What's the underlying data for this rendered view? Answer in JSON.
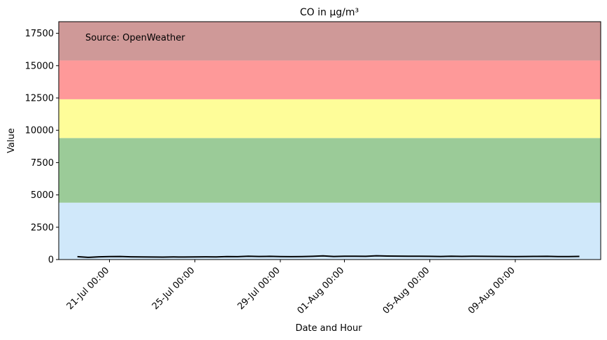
{
  "chart_data": {
    "type": "line",
    "title": "CO in µg/m³",
    "xlabel": "Date and Hour",
    "ylabel": "Value",
    "annotation": "Source: OpenWeather",
    "ylim": [
      0,
      18400
    ],
    "xlim": [
      "2023-07-18T15:00",
      "2023-08-13T00:00"
    ],
    "y_ticks": [
      0,
      2500,
      5000,
      7500,
      10000,
      12500,
      15000,
      17500
    ],
    "y_tick_labels": [
      "0",
      "2500",
      "5000",
      "7500",
      "10000",
      "12500",
      "15000",
      "17500"
    ],
    "x_ticks": [
      {
        "date": "2023-07-21T00:00",
        "label": "21-Jul 00:00"
      },
      {
        "date": "2023-07-25T00:00",
        "label": "25-Jul 00:00"
      },
      {
        "date": "2023-07-29T00:00",
        "label": "29-Jul 00:00"
      },
      {
        "date": "2023-08-01T00:00",
        "label": "01-Aug 00:00"
      },
      {
        "date": "2023-08-05T00:00",
        "label": "05-Aug 00:00"
      },
      {
        "date": "2023-08-09T00:00",
        "label": "09-Aug 00:00"
      }
    ],
    "bands": [
      {
        "from": 0,
        "to": 4400,
        "color": "#d0e8fa"
      },
      {
        "from": 4400,
        "to": 9400,
        "color": "#9bcb98"
      },
      {
        "from": 9400,
        "to": 12400,
        "color": "#fefd99"
      },
      {
        "from": 12400,
        "to": 15400,
        "color": "#fe9999"
      },
      {
        "from": 15400,
        "to": 18400,
        "color": "#cf9998"
      }
    ],
    "series": [
      {
        "color": "#000000",
        "x": [
          "2023-07-19T12:00",
          "2023-07-20T00:00",
          "2023-07-20T12:00",
          "2023-07-21T00:00",
          "2023-07-21T12:00",
          "2023-07-22T00:00",
          "2023-07-22T12:00",
          "2023-07-23T00:00",
          "2023-07-23T12:00",
          "2023-07-24T00:00",
          "2023-07-24T12:00",
          "2023-07-25T00:00",
          "2023-07-25T12:00",
          "2023-07-26T00:00",
          "2023-07-26T12:00",
          "2023-07-27T00:00",
          "2023-07-27T12:00",
          "2023-07-28T00:00",
          "2023-07-28T12:00",
          "2023-07-29T00:00",
          "2023-07-29T12:00",
          "2023-07-30T00:00",
          "2023-07-30T12:00",
          "2023-07-31T00:00",
          "2023-07-31T12:00",
          "2023-08-01T00:00",
          "2023-08-01T12:00",
          "2023-08-02T00:00",
          "2023-08-02T12:00",
          "2023-08-03T00:00",
          "2023-08-03T12:00",
          "2023-08-04T00:00",
          "2023-08-04T12:00",
          "2023-08-05T00:00",
          "2023-08-05T12:00",
          "2023-08-06T00:00",
          "2023-08-06T12:00",
          "2023-08-07T00:00",
          "2023-08-07T12:00",
          "2023-08-08T00:00",
          "2023-08-08T12:00",
          "2023-08-09T00:00",
          "2023-08-09T12:00",
          "2023-08-10T00:00",
          "2023-08-10T12:00",
          "2023-08-11T00:00",
          "2023-08-11T12:00",
          "2023-08-12T00:00"
        ],
        "values": [
          220,
          170,
          210,
          230,
          240,
          210,
          200,
          195,
          190,
          200,
          195,
          205,
          210,
          200,
          230,
          220,
          260,
          240,
          250,
          230,
          220,
          235,
          250,
          280,
          240,
          260,
          255,
          250,
          290,
          270,
          265,
          260,
          255,
          250,
          240,
          260,
          245,
          255,
          250,
          245,
          240,
          235,
          240,
          245,
          250,
          235,
          225,
          245
        ]
      }
    ]
  }
}
